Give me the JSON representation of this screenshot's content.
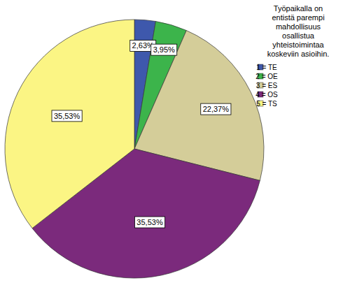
{
  "chart_data": {
    "type": "pie",
    "title": "Työpaikalla on entistä parempi mahdollisuus osallistua yhteistoimintaa koskeviin asioihin.",
    "categories": [
      "1 = TE",
      "2 = OE",
      "3 = ES",
      "4 = OS",
      "5 = TS"
    ],
    "values": [
      2.63,
      3.95,
      22.37,
      35.53,
      35.53
    ],
    "value_labels": [
      "2,63%",
      "3,95%",
      "22,37%",
      "35,53%",
      "35,53%"
    ],
    "colors": [
      "#3e58ac",
      "#3cb44b",
      "#d4cd99",
      "#7b2a7c",
      "#fbf584"
    ],
    "data_labels": true,
    "legend": "top-right"
  }
}
